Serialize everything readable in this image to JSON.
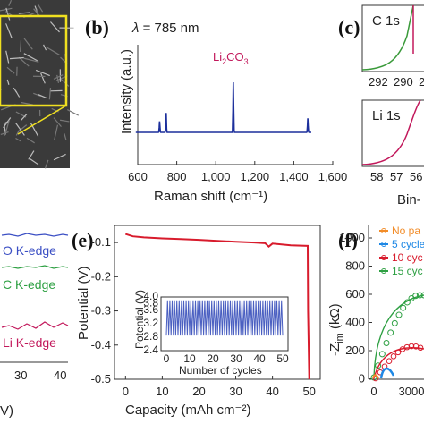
{
  "colors": {
    "raman_line": "#1c2f9c",
    "li2co3_label": "#c2185b",
    "c1s_fit": "#3a9a3a",
    "c1s_data": "#c2185b",
    "li1s_line": "#c2185b",
    "potential_line": "#d81b2c",
    "inset_line": "#4a5fc1",
    "o_edge": "#3b4fc4",
    "c_edge": "#2ea043",
    "li_edge": "#c2185b",
    "no_pass": "#f28c28",
    "cyc5": "#1e88e5",
    "cyc10": "#d81b2c",
    "cyc15": "#2ea043",
    "inset_box": "#f0e020",
    "micrograph_bg": "#2a2a2a"
  },
  "panels": {
    "a_partial": {
      "tick_labels": [
        "40"
      ],
      "axis_fragment": "V)"
    },
    "b": {
      "letter": "(b)",
      "annotation_lambda": "λ",
      "annotation_value": "= 785 nm",
      "peak_label_main": "Li",
      "peak_label_sub1": "2",
      "peak_label_mid": "CO",
      "peak_label_sub2": "3"
    },
    "c": {
      "letter": "(c)",
      "top_label": "C 1s",
      "bottom_label": "Li 1s",
      "xlabel_partial": "Bin-",
      "top_ticks": [
        "292",
        "290",
        "2"
      ],
      "bottom_ticks": [
        "58",
        "57",
        "56"
      ]
    },
    "d_partial": {
      "curve_labels": [
        "O K-edge",
        "C K-edge",
        "Li K-edge"
      ],
      "label_prefixes": [
        "",
        "",
        ""
      ]
    },
    "e": {
      "letter": "(e)",
      "inset_ylabel": "Potential (V)",
      "inset_xlabel": "Number of cycles",
      "inset_yticks": [
        "4.0",
        "3.8",
        "3.6",
        "3.2",
        "2.8",
        "2.4"
      ],
      "inset_xticks": [
        "0",
        "10",
        "20",
        "30",
        "40",
        "50"
      ]
    },
    "f": {
      "letter": "(f)",
      "ylabel": "-Z",
      "ylabel_sub": "im",
      "ylabel_unit": " (kΩ)",
      "yticks": [
        "1000",
        "800",
        "600",
        "400",
        "200",
        "0"
      ],
      "xticks": [
        "0",
        "3000"
      ],
      "legend": [
        "No pa",
        "5 cycle",
        "10 cyc",
        "15 cyc"
      ]
    }
  },
  "chart_data": [
    {
      "type": "line",
      "panel": "b",
      "title": "",
      "xlabel": "Raman shift (cm⁻¹)",
      "ylabel": "Intensity (a.u.)",
      "xlim": [
        600,
        1600
      ],
      "xticks": [
        "600",
        "800",
        "1,000",
        "1,200",
        "1,400",
        "1,600"
      ],
      "grid": false,
      "peaks": [
        {
          "x": 712,
          "height": 0.22
        },
        {
          "x": 745,
          "height": 0.46
        },
        {
          "x": 1090,
          "height": 1.0
        },
        {
          "x": 1472,
          "height": 0.28
        }
      ]
    },
    {
      "type": "line",
      "panel": "e",
      "title": "",
      "xlabel": "Capacity (mAh cm⁻²)",
      "ylabel": "Potential (V)",
      "xlim": [
        -3,
        53
      ],
      "ylim": [
        -0.5,
        -0.05
      ],
      "xticks": [
        "0",
        "10",
        "20",
        "30",
        "40",
        "50"
      ],
      "yticks": [
        "-0.1",
        "-0.2",
        "-0.3",
        "-0.4",
        "-0.5"
      ],
      "x": [
        0,
        2,
        5,
        10,
        15,
        20,
        25,
        30,
        35,
        38,
        39,
        40,
        45,
        49.6,
        49.7,
        50
      ],
      "y": [
        -0.075,
        -0.082,
        -0.085,
        -0.088,
        -0.09,
        -0.092,
        -0.095,
        -0.098,
        -0.1,
        -0.102,
        -0.112,
        -0.103,
        -0.108,
        -0.11,
        -0.3,
        -0.5
      ],
      "inset": {
        "cycles": 50,
        "ylim": [
          2.4,
          4.0
        ],
        "low": 2.85,
        "high": 3.9
      }
    }
  ]
}
